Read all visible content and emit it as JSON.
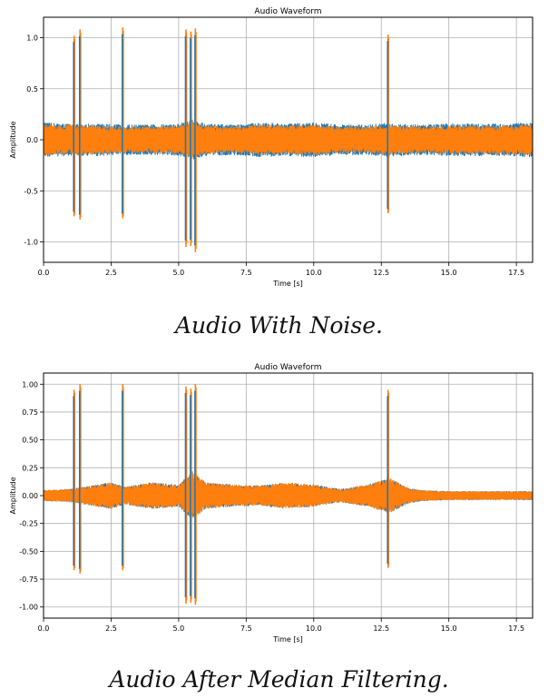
{
  "chart_data": [
    {
      "type": "line",
      "title": "Audio Waveform",
      "xlabel": "Time [s]",
      "ylabel": "Amplitude",
      "xlim": [
        0,
        18.1
      ],
      "ylim": [
        -1.2,
        1.2
      ],
      "x_ticks": [
        "0.0",
        "2.5",
        "5.0",
        "7.5",
        "10.0",
        "12.5",
        "15.0",
        "17.5"
      ],
      "y_ticks": [
        "-1.0",
        "-0.5",
        "0.0",
        "0.5",
        "1.0"
      ],
      "y_tick_values": [
        -1.0,
        -0.5,
        0.0,
        0.5,
        1.0
      ],
      "grid": true,
      "series": [
        {
          "color": "#1f77b4",
          "baseline_amplitude": 0.17,
          "envelope_x": [
            0,
            1,
            2,
            3,
            4,
            5,
            5.5,
            6,
            7,
            8,
            9,
            10,
            11,
            12,
            12.8,
            13,
            14,
            15,
            16,
            17,
            18.1
          ],
          "envelope_y": [
            0.17,
            0.16,
            0.16,
            0.15,
            0.15,
            0.16,
            0.2,
            0.16,
            0.15,
            0.17,
            0.16,
            0.17,
            0.15,
            0.15,
            0.17,
            0.16,
            0.15,
            0.16,
            0.16,
            0.16,
            0.17
          ]
        },
        {
          "color": "#ff7f0e",
          "baseline_amplitude": 0.15,
          "envelope_x": [
            0,
            1,
            2,
            3,
            4,
            5,
            5.5,
            6,
            7,
            8,
            9,
            10,
            11,
            12,
            12.8,
            13,
            14,
            15,
            16,
            17,
            18.1
          ],
          "envelope_y": [
            0.15,
            0.15,
            0.14,
            0.13,
            0.13,
            0.14,
            0.18,
            0.14,
            0.13,
            0.15,
            0.14,
            0.15,
            0.13,
            0.13,
            0.15,
            0.14,
            0.13,
            0.14,
            0.14,
            0.14,
            0.15
          ]
        }
      ],
      "spikes": [
        {
          "x": 1.13,
          "top": 1.02,
          "bottom": -0.75
        },
        {
          "x": 1.35,
          "top": 1.08,
          "bottom": -0.78
        },
        {
          "x": 2.93,
          "top": 1.1,
          "bottom": -0.77
        },
        {
          "x": 5.27,
          "top": 1.08,
          "bottom": -1.05
        },
        {
          "x": 5.45,
          "top": 1.06,
          "bottom": -1.04
        },
        {
          "x": 5.62,
          "top": 1.09,
          "bottom": -1.1
        },
        {
          "x": 12.75,
          "top": 1.03,
          "bottom": -0.72
        }
      ]
    },
    {
      "type": "line",
      "title": "Audio Waveform",
      "xlabel": "Time [s]",
      "ylabel": "Amplitude",
      "xlim": [
        0,
        18.1
      ],
      "ylim": [
        -1.1,
        1.1
      ],
      "x_ticks": [
        "0.0",
        "2.5",
        "5.0",
        "7.5",
        "10.0",
        "12.5",
        "15.0",
        "17.5"
      ],
      "y_ticks": [
        "-1.00",
        "-0.75",
        "-0.50",
        "-0.25",
        "0.00",
        "0.25",
        "0.50",
        "0.75",
        "1.00"
      ],
      "y_tick_values": [
        -1.0,
        -0.75,
        -0.5,
        -0.25,
        0.0,
        0.25,
        0.5,
        0.75,
        1.0
      ],
      "grid": true,
      "series": [
        {
          "color": "#1f77b4",
          "baseline_amplitude": 0.05,
          "envelope_x": [
            0,
            1,
            2,
            2.5,
            3,
            4,
            5,
            5.5,
            6,
            7,
            8,
            9,
            10,
            11,
            12,
            12.8,
            13.5,
            14,
            15,
            16,
            17,
            18.1
          ],
          "envelope_y": [
            0.05,
            0.06,
            0.1,
            0.12,
            0.08,
            0.12,
            0.1,
            0.22,
            0.12,
            0.1,
            0.09,
            0.12,
            0.1,
            0.06,
            0.1,
            0.16,
            0.07,
            0.05,
            0.04,
            0.04,
            0.04,
            0.04
          ]
        },
        {
          "color": "#ff7f0e",
          "baseline_amplitude": 0.05,
          "envelope_x": [
            0,
            1,
            2,
            2.5,
            3,
            4,
            5,
            5.5,
            6,
            7,
            8,
            9,
            10,
            11,
            12,
            12.8,
            13.5,
            14,
            15,
            16,
            17,
            18.1
          ],
          "envelope_y": [
            0.05,
            0.06,
            0.1,
            0.12,
            0.08,
            0.12,
            0.1,
            0.22,
            0.12,
            0.1,
            0.09,
            0.12,
            0.1,
            0.06,
            0.1,
            0.16,
            0.07,
            0.05,
            0.04,
            0.04,
            0.04,
            0.04
          ]
        }
      ],
      "spikes": [
        {
          "x": 1.13,
          "top": 0.95,
          "bottom": -0.67
        },
        {
          "x": 1.35,
          "top": 1.0,
          "bottom": -0.7
        },
        {
          "x": 2.93,
          "top": 1.0,
          "bottom": -0.67
        },
        {
          "x": 5.27,
          "top": 0.98,
          "bottom": -0.97
        },
        {
          "x": 5.45,
          "top": 0.96,
          "bottom": -0.96
        },
        {
          "x": 5.62,
          "top": 1.0,
          "bottom": -0.98
        },
        {
          "x": 12.75,
          "top": 0.95,
          "bottom": -0.65
        }
      ]
    }
  ],
  "captions": [
    "Audio With Noise.",
    "Audio After Median Filtering."
  ]
}
